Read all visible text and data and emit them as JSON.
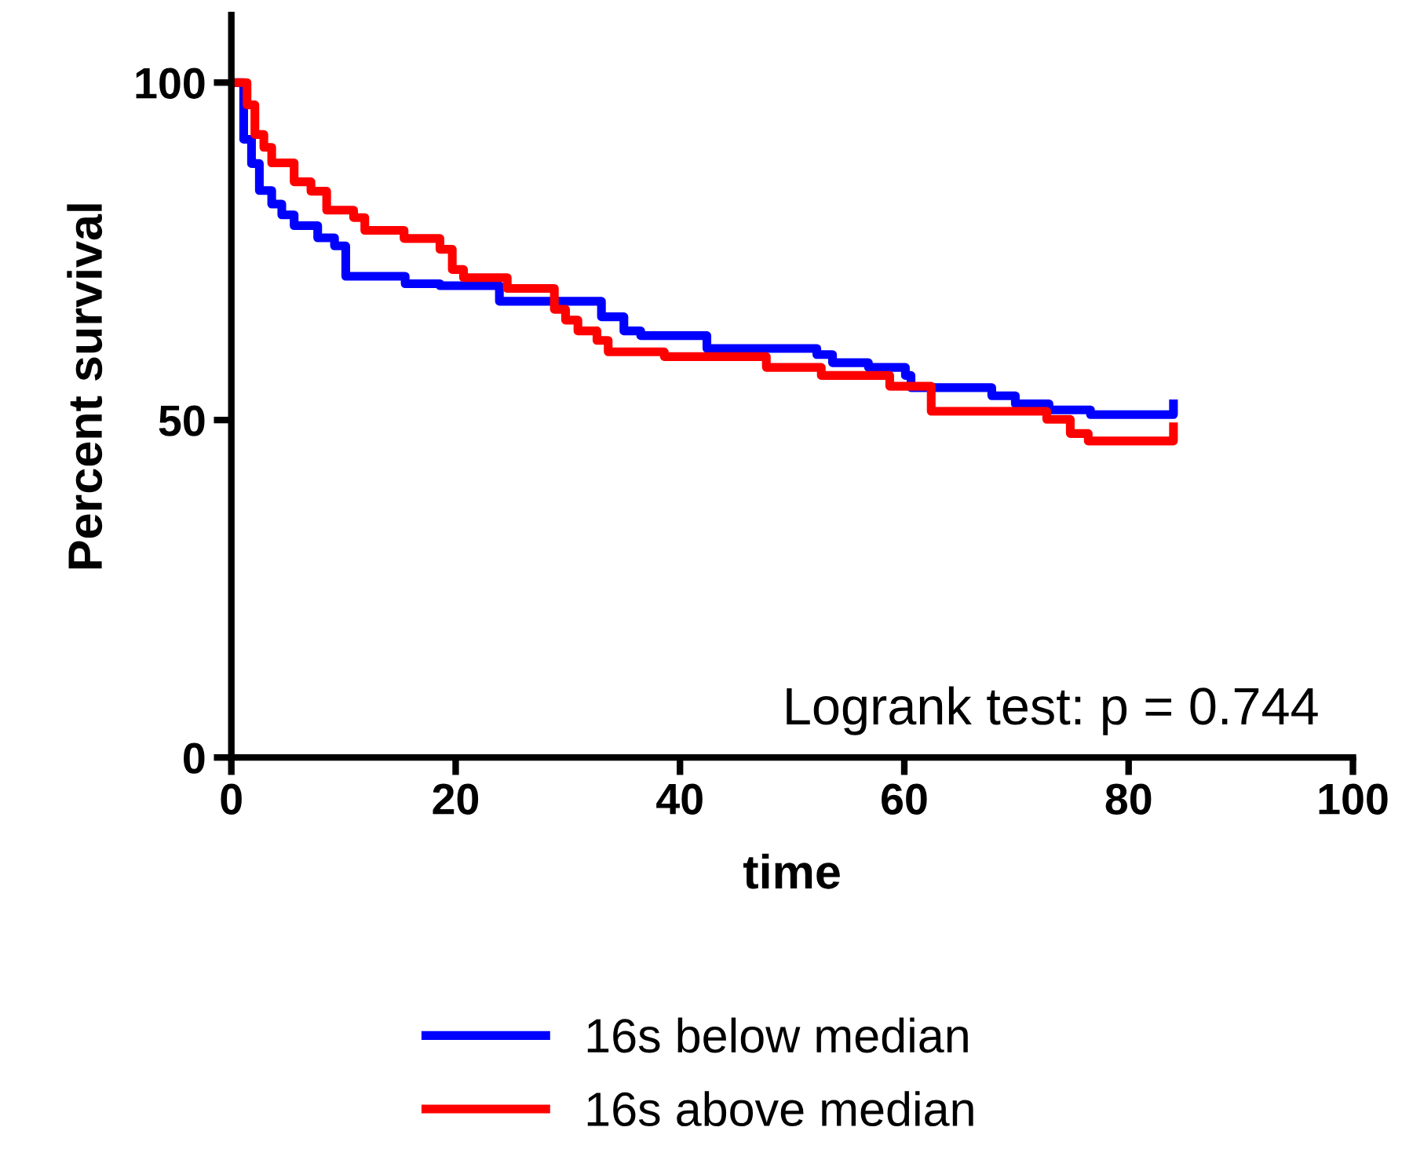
{
  "chart_data": {
    "type": "step",
    "xlabel": "time",
    "ylabel": "Percent survival",
    "xlim": [
      0,
      100
    ],
    "ylim": [
      0,
      110
    ],
    "xticks": [
      0,
      20,
      40,
      60,
      80,
      100
    ],
    "yticks": [
      0,
      50,
      100
    ],
    "grid": false,
    "legend": "bottom",
    "line_style": "solid",
    "marker": "none",
    "annotations": [
      "Logrank test: p = 0.744"
    ],
    "series": [
      {
        "name": "16s below median",
        "color": "#0000ff",
        "x": [
          0,
          1.1,
          1.8,
          2.5,
          3.6,
          4.5,
          5.6,
          7.7,
          9.2,
          10.2,
          15.5,
          18.6,
          23.9,
          33,
          35,
          36.5,
          42.4,
          52.2,
          53.6,
          56.8,
          60.1,
          60.6,
          67.8,
          69.9,
          72.9,
          76.6,
          84
        ],
        "values": [
          100,
          91.6,
          88,
          84,
          82,
          80.4,
          78.8,
          77,
          75.8,
          71.3,
          70.2,
          69.9,
          67.6,
          65.3,
          63.2,
          62.5,
          60.6,
          59.7,
          58.5,
          57.8,
          56.6,
          54.8,
          53.6,
          52.4,
          51.5,
          50.8,
          52.4
        ]
      },
      {
        "name": "16s above median",
        "color": "#ff0000",
        "x": [
          0,
          1.4,
          2.1,
          2.9,
          3.6,
          5.6,
          7.1,
          8.5,
          10.9,
          11.9,
          15.4,
          18.6,
          19.7,
          20.7,
          24.6,
          28.8,
          29.8,
          30.9,
          32.6,
          33.6,
          38.6,
          47.7,
          52.6,
          58.7,
          62.4,
          72.7,
          74.8,
          76.4,
          84
        ],
        "values": [
          100,
          96.7,
          92.3,
          90.4,
          88.1,
          85.3,
          83.9,
          81.1,
          80,
          78.1,
          76.9,
          75.3,
          72.3,
          71.1,
          69.5,
          66.4,
          64.8,
          63.2,
          61.8,
          60.1,
          59.4,
          57.8,
          56.6,
          55,
          51.3,
          50.1,
          48,
          46.9,
          49
        ]
      }
    ]
  }
}
